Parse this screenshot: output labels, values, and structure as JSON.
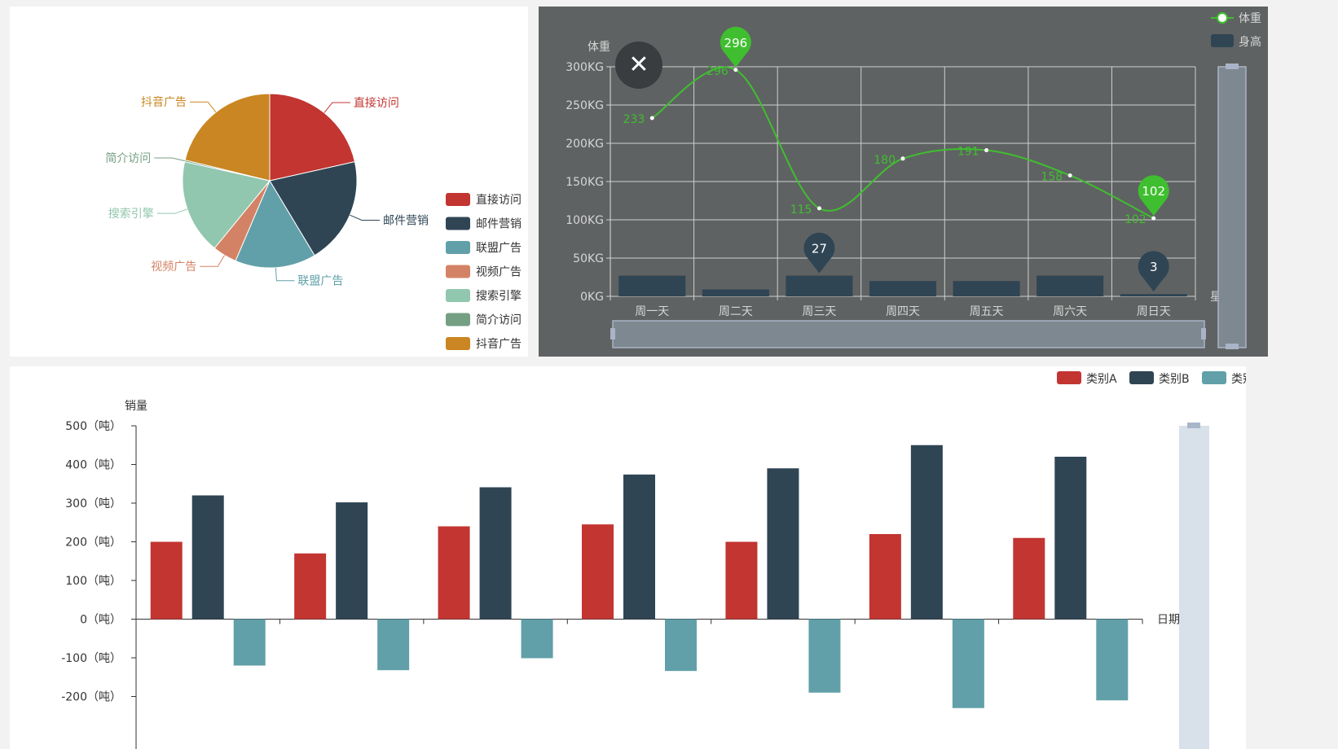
{
  "chart_data": [
    {
      "type": "pie",
      "slices": [
        {
          "name": "直接访问",
          "value": 335,
          "color": "#c23531"
        },
        {
          "name": "邮件营销",
          "value": 310,
          "color": "#2f4554"
        },
        {
          "name": "联盟广告",
          "value": 234,
          "color": "#61a0a8"
        },
        {
          "name": "视频广告",
          "value": 70,
          "color": "#d48265"
        },
        {
          "name": "搜索引擎",
          "value": 274,
          "color": "#91c7ae"
        },
        {
          "name": "简介访问",
          "value": 5,
          "color": "#749f83"
        },
        {
          "name": "抖音广告",
          "value": 330,
          "color": "#ca8622"
        }
      ],
      "legend_position": "bottom-right"
    },
    {
      "type": "bar-line",
      "categories": [
        "周一天",
        "周二天",
        "周三天",
        "周四天",
        "周五天",
        "周六天",
        "周日天"
      ],
      "xlabel": "星期",
      "ylabel": "体重",
      "y_ticks": [
        "0KG",
        "50KG",
        "100KG",
        "150KG",
        "200KG",
        "250KG",
        "300KG"
      ],
      "ylim": [
        0,
        300
      ],
      "series": [
        {
          "name": "体重",
          "type": "line",
          "color": "#3fbf2f",
          "values": [
            233,
            296,
            115,
            180,
            191,
            158,
            102
          ],
          "markpoints": [
            {
              "index": 1,
              "label": "296"
            },
            {
              "index": 6,
              "label": "102"
            }
          ]
        },
        {
          "name": "身高",
          "type": "bar",
          "color": "#2f4554",
          "values": [
            27,
            9,
            27,
            20,
            20,
            27,
            3
          ],
          "markpoints": [
            {
              "index": 2,
              "label": "27"
            },
            {
              "index": 6,
              "label": "3"
            }
          ]
        }
      ],
      "legend_position": "top-right",
      "close_icon": "close-icon"
    },
    {
      "type": "bar",
      "ylabel": "销量",
      "xlabel": "日期",
      "y_ticks": [
        "500（吨）",
        "400（吨）",
        "300（吨）",
        "200（吨）",
        "100（吨）",
        "0（吨）",
        "-100（吨）",
        "-200（吨）"
      ],
      "ylim": [
        -250,
        500
      ],
      "series": [
        {
          "name": "类别A",
          "color": "#c23531",
          "values": [
            200,
            170,
            240,
            245,
            200,
            220,
            210
          ]
        },
        {
          "name": "类别B",
          "color": "#2f4554",
          "values": [
            320,
            302,
            341,
            374,
            390,
            450,
            420
          ]
        },
        {
          "name": "类别C",
          "color": "#61a0a8",
          "values": [
            -120,
            -132,
            -101,
            -134,
            -190,
            -230,
            -210
          ]
        }
      ],
      "legend_position": "top-right"
    }
  ]
}
